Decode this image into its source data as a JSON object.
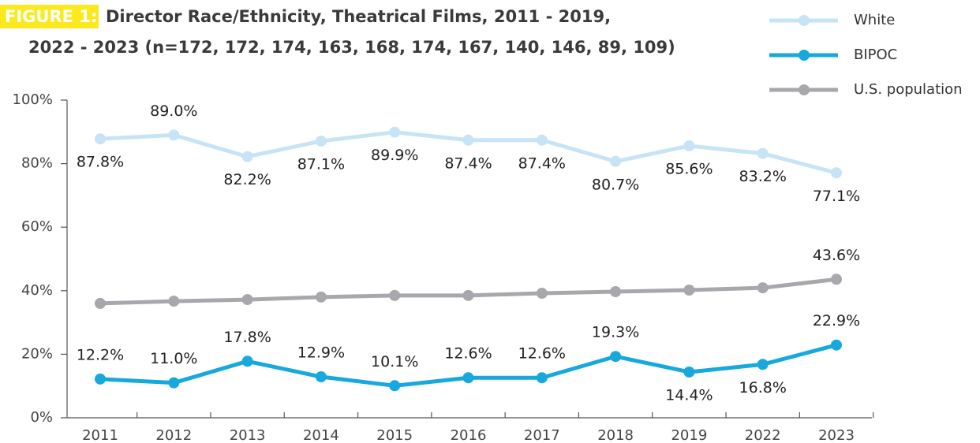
{
  "chart_data": {
    "type": "line",
    "title_label": "FIGURE 1:",
    "title": [
      "Director Race/Ethnicity, Theatrical Films, 2011 - 2019,",
      "2022 - 2023 (n=172, 172, 174, 163, 168, 174, 167, 140, 146, 89, 109)"
    ],
    "categories": [
      "2011",
      "2012",
      "2013",
      "2014",
      "2015",
      "2016",
      "2017",
      "2018",
      "2019",
      "2022",
      "2023"
    ],
    "series": [
      {
        "name": "White",
        "color": "#c6e4f6",
        "values": [
          87.8,
          89.0,
          82.2,
          87.1,
          89.9,
          87.4,
          87.4,
          80.7,
          85.6,
          83.2,
          77.1
        ],
        "value_labels": [
          "87.8%",
          "89.0%",
          "82.2%",
          "87.1%",
          "89.9%",
          "87.4%",
          "87.4%",
          "80.7%",
          "85.6%",
          "83.2%",
          "77.1%"
        ]
      },
      {
        "name": "BIPOC",
        "color": "#17a8dd",
        "values": [
          12.2,
          11.0,
          17.8,
          12.9,
          10.1,
          12.6,
          12.6,
          19.3,
          14.4,
          16.8,
          22.9
        ],
        "value_labels": [
          "12.2%",
          "11.0%",
          "17.8%",
          "12.9%",
          "10.1%",
          "12.6%",
          "12.6%",
          "19.3%",
          "14.4%",
          "16.8%",
          "22.9%"
        ]
      },
      {
        "name": "U.S. population",
        "color": "#a8a7ac",
        "values": [
          36.0,
          36.7,
          37.2,
          38.0,
          38.5,
          38.5,
          39.2,
          39.7,
          40.2,
          40.9,
          43.6
        ],
        "value_labels": [
          null,
          null,
          null,
          null,
          null,
          null,
          null,
          null,
          null,
          null,
          "43.6%"
        ]
      }
    ],
    "ylim": [
      0,
      100
    ],
    "yticks": [
      {
        "value": 0,
        "label": "0%"
      },
      {
        "value": 20,
        "label": "20%"
      },
      {
        "value": 40,
        "label": "40%"
      },
      {
        "value": 60,
        "label": "60%"
      },
      {
        "value": 80,
        "label": "80%"
      },
      {
        "value": 100,
        "label": "100%"
      }
    ],
    "legend": "top-right"
  }
}
